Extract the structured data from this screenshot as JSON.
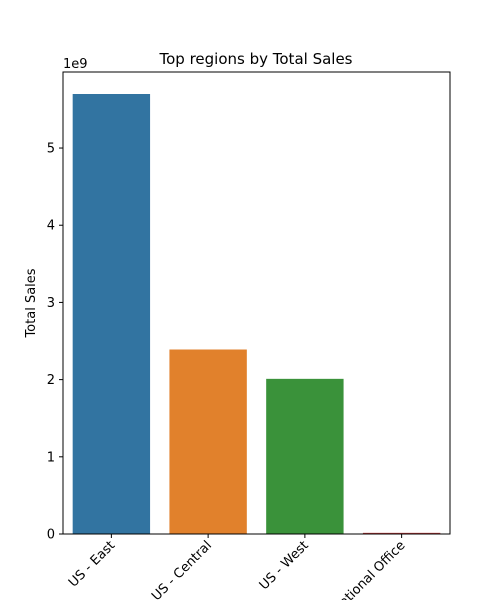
{
  "chart_data": {
    "type": "bar",
    "title": "Top regions by Total Sales",
    "xlabel": "",
    "ylabel": "Total Sales",
    "y_offset_label": "1e9",
    "y_scale": 1000000000,
    "categories": [
      "US - East",
      "US - Central",
      "US - West",
      "National Office"
    ],
    "values": [
      5700000000,
      2390000000,
      2010000000,
      15000000
    ],
    "colors": [
      "#3274a1",
      "#e1812c",
      "#3a923a",
      "#c03d3e"
    ],
    "ylim": [
      0,
      5985000000
    ],
    "yticks": [
      0,
      1,
      2,
      3,
      4,
      5
    ],
    "grid": false,
    "legend": "none"
  }
}
